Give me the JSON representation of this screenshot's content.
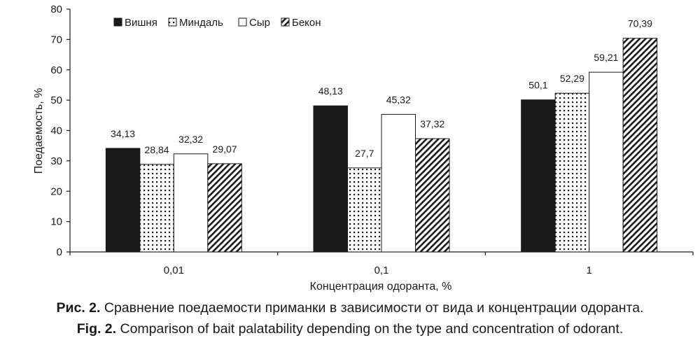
{
  "chart_data": {
    "type": "bar",
    "categories": [
      "0,01",
      "0,1",
      "1"
    ],
    "series": [
      {
        "name": "Вишня",
        "values": [
          34.13,
          48.13,
          50.1
        ],
        "labels": [
          "34,13",
          "48,13",
          "50,1"
        ],
        "fill": "black"
      },
      {
        "name": "Миндаль",
        "values": [
          28.84,
          27.7,
          52.29
        ],
        "labels": [
          "28,84",
          "27,7",
          "52,29"
        ],
        "fill": "dots"
      },
      {
        "name": "Сыр",
        "values": [
          32.32,
          45.32,
          59.21
        ],
        "labels": [
          "32,32",
          "45,32",
          "59,21"
        ],
        "fill": "white"
      },
      {
        "name": "Бекон",
        "values": [
          29.07,
          37.32,
          70.39
        ],
        "labels": [
          "29,07",
          "37,32",
          "70,39"
        ],
        "fill": "hatch"
      }
    ],
    "xlabel": "Концентрация одоранта, %",
    "ylabel": "Поедаемость, %",
    "ylim": [
      0,
      80
    ],
    "yticks": [
      0,
      10,
      20,
      30,
      40,
      50,
      60,
      70,
      80
    ],
    "grid": false,
    "legend_position": "top-left"
  },
  "caption": {
    "ru_prefix": "Рис. 2.",
    "ru_text": " Сравнение поедаемости приманки в зависимости от вида и концентрации одоранта.",
    "en_prefix": "Fig. 2.",
    "en_text": " Comparison of bait palatability depending on the type and concentration of odorant."
  },
  "colors": {
    "ink": "#1a1a1a",
    "background": "#ffffff"
  }
}
